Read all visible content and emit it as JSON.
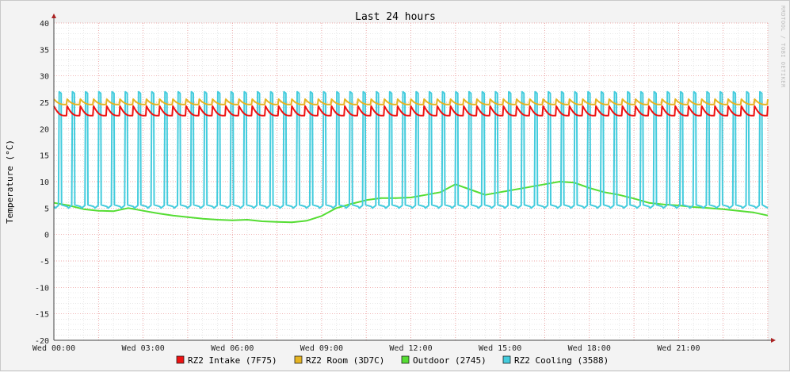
{
  "chart_data": {
    "type": "line",
    "title": "Last 24 hours",
    "ylabel": "Temperature (°C)",
    "watermark": "RRDTOOL / TOBI OETIKER",
    "ylim": [
      -20,
      40
    ],
    "yticks": [
      40,
      35,
      30,
      25,
      20,
      15,
      10,
      5,
      0,
      -5,
      -10,
      -15,
      -20
    ],
    "xlim": [
      0,
      24
    ],
    "xunit": "hours since Wed 00:00",
    "xticks": [
      {
        "x": 0,
        "label": "Wed 00:00"
      },
      {
        "x": 3,
        "label": "Wed 03:00"
      },
      {
        "x": 6,
        "label": "Wed 06:00"
      },
      {
        "x": 9,
        "label": "Wed 09:00"
      },
      {
        "x": 12,
        "label": "Wed 12:00"
      },
      {
        "x": 15,
        "label": "Wed 15:00"
      },
      {
        "x": 18,
        "label": "Wed 18:00"
      },
      {
        "x": 21,
        "label": "Wed 21:00"
      }
    ],
    "grid": true,
    "legend_position": "bottom",
    "series": [
      {
        "name": "RZ2 Intake (7F75)",
        "color": "#ee1111",
        "pattern": "sawtooth",
        "x": [
          0,
          24
        ],
        "y_high": [
          24.3,
          24.3
        ],
        "y_low": [
          22.5,
          22.5
        ]
      },
      {
        "name": "RZ2 Room (3D7C)",
        "color": "#e6b422",
        "pattern": "sawtooth",
        "x": [
          0,
          24
        ],
        "y_high": [
          25.6,
          25.6
        ],
        "y_low": [
          24.6,
          24.6
        ]
      },
      {
        "name": "Outdoor (2745)",
        "color": "#55dd33",
        "pattern": "line",
        "x": [
          0,
          0.5,
          1,
          1.5,
          2,
          2.5,
          3,
          3.5,
          4,
          4.5,
          5,
          5.5,
          6,
          6.5,
          7,
          7.5,
          8,
          8.5,
          9,
          9.5,
          10,
          10.5,
          11,
          11.5,
          12,
          12.5,
          13,
          13.5,
          14,
          14.5,
          15,
          15.5,
          16,
          16.5,
          17,
          17.5,
          18,
          18.5,
          19,
          19.5,
          20,
          20.5,
          21,
          21.5,
          22,
          22.5,
          23,
          23.5,
          24
        ],
        "y": [
          6.0,
          5.5,
          4.8,
          4.5,
          4.4,
          5.0,
          4.5,
          4.0,
          3.6,
          3.3,
          3.0,
          2.8,
          2.7,
          2.8,
          2.5,
          2.4,
          2.3,
          2.6,
          3.5,
          5.0,
          5.8,
          6.5,
          6.9,
          6.9,
          7.0,
          7.5,
          8.0,
          9.5,
          8.5,
          7.5,
          8.0,
          8.5,
          9.0,
          9.5,
          10.0,
          9.8,
          8.8,
          8.0,
          7.5,
          6.8,
          6.0,
          5.7,
          5.5,
          5.2,
          5.0,
          4.8,
          4.5,
          4.2,
          3.6
        ]
      },
      {
        "name": "RZ2 Cooling (3588)",
        "color": "#44ccdd",
        "pattern": "square",
        "x": [
          0,
          24
        ],
        "y_high": [
          27,
          27
        ],
        "y_low": [
          5,
          5
        ]
      }
    ]
  }
}
